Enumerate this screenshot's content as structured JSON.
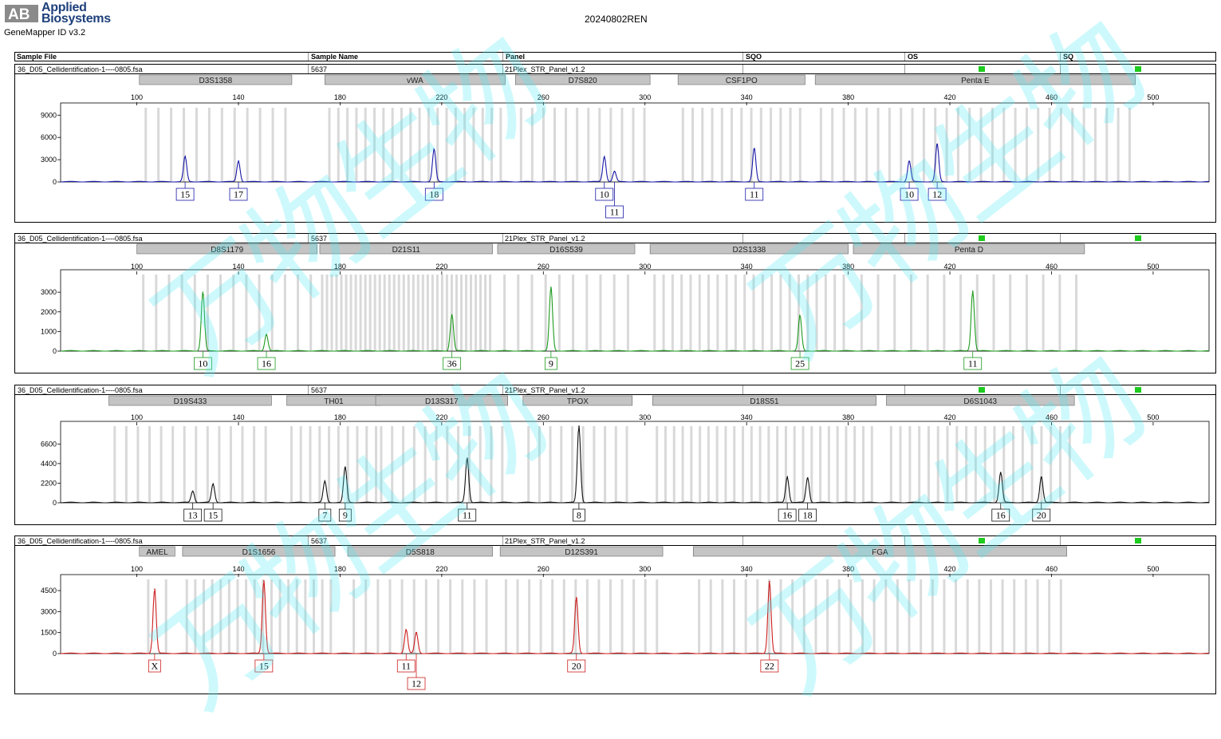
{
  "app": {
    "vendor_line1": "Applied",
    "vendor_line2": "Biosystems",
    "product": "GeneMapper ID v3.2",
    "title": "20240802REN",
    "watermark": "万物生物",
    "logo_lettering": "AB"
  },
  "columns": [
    "Sample File",
    "Sample Name",
    "Panel",
    "SQO",
    "OS",
    "SQ"
  ],
  "colors": {
    "blue": "#1a1aa8",
    "green": "#1e9a1e",
    "black": "#111111",
    "red": "#cc1f1f",
    "flag": "#1ecb1e",
    "bin": "#d9d9d9",
    "marker": "#c4c4c4"
  },
  "chart_data": [
    {
      "type": "line",
      "dye": "blue",
      "sample_file": "36_D05_Cellidentification-1----0805.fsa",
      "sample_name": "5637",
      "panel": "21Plex_STR_Panel_v1.2",
      "xlabel": "",
      "ylabel": "",
      "x_ticks": [
        100,
        140,
        180,
        220,
        260,
        300,
        340,
        380,
        420,
        460,
        500
      ],
      "xlim": [
        70,
        522
      ],
      "y_ticks": [
        0,
        3000,
        6000,
        9000
      ],
      "ylim": [
        0,
        10000
      ],
      "markers": [
        {
          "name": "D3S1358",
          "start": 101,
          "end": 161
        },
        {
          "name": "vWA",
          "start": 174,
          "end": 245
        },
        {
          "name": "D7S820",
          "start": 249,
          "end": 302
        },
        {
          "name": "CSF1PO",
          "start": 313,
          "end": 363
        },
        {
          "name": "Penta E",
          "start": 367,
          "end": 493
        }
      ],
      "bins": [
        [
          101,
          161,
          12
        ],
        [
          174,
          245,
          20
        ],
        [
          249,
          302,
          12
        ],
        [
          313,
          363,
          13
        ],
        [
          367,
          493,
          28
        ]
      ],
      "peaks": [
        {
          "size": 119,
          "height": 3400,
          "label": "15",
          "ypos": 0
        },
        {
          "size": 140,
          "height": 2800,
          "label": "17",
          "ypos": 0
        },
        {
          "size": 217,
          "height": 4400,
          "label": "18",
          "ypos": 0
        },
        {
          "size": 284,
          "height": 3400,
          "label": "10",
          "ypos": 0
        },
        {
          "size": 288,
          "height": 1400,
          "label": "11",
          "ypos": 1
        },
        {
          "size": 343,
          "height": 4500,
          "label": "11",
          "ypos": 0
        },
        {
          "size": 404,
          "height": 2800,
          "label": "10",
          "ypos": 0
        },
        {
          "size": 415,
          "height": 5100,
          "label": "12",
          "ypos": 0
        }
      ]
    },
    {
      "type": "line",
      "dye": "green",
      "sample_file": "36_D05_Cellidentification-1----0805.fsa",
      "sample_name": "5637",
      "panel": "21Plex_STR_Panel_v1.2",
      "xlabel": "",
      "ylabel": "",
      "x_ticks": [
        100,
        140,
        180,
        220,
        260,
        300,
        340,
        380,
        420,
        460,
        500
      ],
      "xlim": [
        70,
        522
      ],
      "y_ticks": [
        0,
        1000,
        2000,
        3000
      ],
      "ylim": [
        0,
        3900
      ],
      "markers": [
        {
          "name": "D8S1179",
          "start": 100,
          "end": 171
        },
        {
          "name": "D21S11",
          "start": 172,
          "end": 240
        },
        {
          "name": "D16S539",
          "start": 242,
          "end": 296
        },
        {
          "name": "D2S1338",
          "start": 302,
          "end": 380
        },
        {
          "name": "Penta D",
          "start": 382,
          "end": 473
        }
      ],
      "bins": [
        [
          100,
          171,
          14
        ],
        [
          172,
          240,
          36
        ],
        [
          242,
          296,
          10
        ],
        [
          302,
          380,
          22
        ],
        [
          382,
          473,
          14
        ]
      ],
      "peaks": [
        {
          "size": 126,
          "height": 3000,
          "label": "10",
          "ypos": 0
        },
        {
          "size": 151,
          "height": 850,
          "label": "16",
          "ypos": 0
        },
        {
          "size": 224,
          "height": 1850,
          "label": "36",
          "ypos": 0
        },
        {
          "size": 263,
          "height": 3250,
          "label": "9",
          "ypos": 0
        },
        {
          "size": 361,
          "height": 1800,
          "label": "25",
          "ypos": 0
        },
        {
          "size": 429,
          "height": 3050,
          "label": "11",
          "ypos": 0
        }
      ]
    },
    {
      "type": "line",
      "dye": "black",
      "sample_file": "36_D05_Cellidentification-1----0805.fsa",
      "sample_name": "5637",
      "panel": "21Plex_STR_Panel_v1.2",
      "xlabel": "",
      "ylabel": "",
      "x_ticks": [
        100,
        140,
        180,
        220,
        260,
        300,
        340,
        380,
        420,
        460,
        500
      ],
      "xlim": [
        70,
        522
      ],
      "y_ticks": [
        0,
        2200,
        4400,
        6600
      ],
      "ylim": [
        0,
        8600
      ],
      "markers": [
        {
          "name": "D19S433",
          "start": 89,
          "end": 153
        },
        {
          "name": "TH01",
          "start": 159,
          "end": 196
        },
        {
          "name": "D13S317",
          "start": 194,
          "end": 246
        },
        {
          "name": "TPOX",
          "start": 252,
          "end": 295
        },
        {
          "name": "D18S51",
          "start": 303,
          "end": 391
        },
        {
          "name": "D6S1043",
          "start": 395,
          "end": 469
        }
      ],
      "bins": [
        [
          89,
          153,
          14
        ],
        [
          159,
          196,
          10
        ],
        [
          194,
          246,
          12
        ],
        [
          252,
          295,
          10
        ],
        [
          303,
          391,
          26
        ],
        [
          395,
          469,
          20
        ]
      ],
      "peaks": [
        {
          "size": 122,
          "height": 1300,
          "label": "13",
          "ypos": 0
        },
        {
          "size": 130,
          "height": 2100,
          "label": "15",
          "ypos": 0
        },
        {
          "size": 174,
          "height": 2400,
          "label": "7",
          "ypos": 0
        },
        {
          "size": 182,
          "height": 4000,
          "label": "9",
          "ypos": 0
        },
        {
          "size": 230,
          "height": 5000,
          "label": "11",
          "ypos": 0
        },
        {
          "size": 274,
          "height": 8600,
          "label": "8",
          "ypos": 0
        },
        {
          "size": 356,
          "height": 2900,
          "label": "16",
          "ypos": 0
        },
        {
          "size": 364,
          "height": 2800,
          "label": "18",
          "ypos": 0
        },
        {
          "size": 440,
          "height": 3400,
          "label": "16",
          "ypos": 0
        },
        {
          "size": 456,
          "height": 2900,
          "label": "20",
          "ypos": 0
        }
      ]
    },
    {
      "type": "line",
      "dye": "red",
      "sample_file": "36_D05_Cellidentification-1----0805.fsa",
      "sample_name": "5637",
      "panel": "21Plex_STR_Panel_v1.2",
      "xlabel": "",
      "ylabel": "",
      "x_ticks": [
        100,
        140,
        180,
        220,
        260,
        300,
        340,
        380,
        420,
        460,
        500
      ],
      "xlim": [
        70,
        522
      ],
      "y_ticks": [
        0,
        1500,
        3000,
        4500
      ],
      "ylim": [
        0,
        5300
      ],
      "markers": [
        {
          "name": "AMEL",
          "start": 101,
          "end": 115
        },
        {
          "name": "D1S1656",
          "start": 118,
          "end": 178
        },
        {
          "name": "D5S818",
          "start": 183,
          "end": 240
        },
        {
          "name": "D12S391",
          "start": 243,
          "end": 307
        },
        {
          "name": "FGA",
          "start": 319,
          "end": 466
        }
      ],
      "bins": [
        [
          101,
          115,
          2
        ],
        [
          118,
          178,
          18
        ],
        [
          183,
          240,
          12
        ],
        [
          243,
          307,
          14
        ],
        [
          319,
          466,
          32
        ]
      ],
      "peaks": [
        {
          "size": 107,
          "height": 4600,
          "label": "X",
          "ypos": 0
        },
        {
          "size": 150,
          "height": 5200,
          "label": "15",
          "ypos": 0
        },
        {
          "size": 206,
          "height": 1700,
          "label": "11",
          "ypos": 0
        },
        {
          "size": 210,
          "height": 1500,
          "label": "12",
          "ypos": 1
        },
        {
          "size": 273,
          "height": 4000,
          "label": "20",
          "ypos": 0
        },
        {
          "size": 349,
          "height": 5150,
          "label": "22",
          "ypos": 0
        }
      ]
    }
  ]
}
